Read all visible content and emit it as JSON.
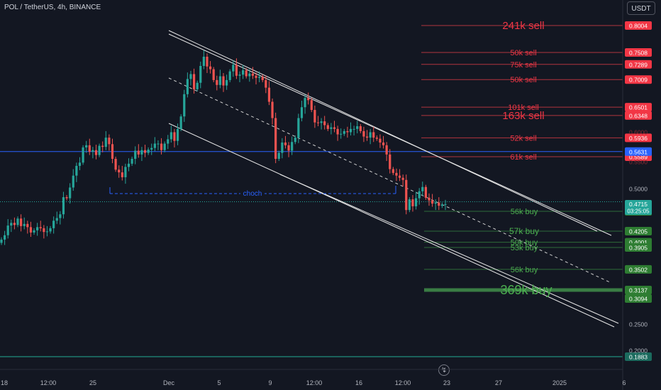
{
  "header": {
    "title": "POL / TetherUS, 4h, BINANCE",
    "currency_button": "USDT",
    "bolt_icon": "lightning-icon"
  },
  "colors": {
    "background": "#131722",
    "up": "#26a69a",
    "down": "#ef5350",
    "sell": "#f23645",
    "buy": "#4caf50",
    "price_line": "#2962ff"
  },
  "chart_data": {
    "type": "candlestick",
    "symbol": "POL / TetherUS",
    "interval": "4h",
    "exchange": "BINANCE",
    "ylim": [
      0.18,
      0.85
    ],
    "y_ticks": [
      "0.5000",
      "0.2500",
      "0.2000"
    ],
    "x_ticks": [
      "18",
      "12:00",
      "25",
      "Dec",
      "5",
      "9",
      "12:00",
      "16",
      "12:00",
      "23",
      "27",
      "2025",
      "6"
    ],
    "current_price": "0.4715",
    "countdown": "03:25:05",
    "blue_line_price": "0.5631",
    "sell_orders": [
      {
        "label": "241k sell",
        "price": "0.8004",
        "size": "large"
      },
      {
        "label": "50k sell",
        "price": "0.7508"
      },
      {
        "label": "75k sell",
        "price": "0.7289"
      },
      {
        "label": "50k sell",
        "price": "0.7009"
      },
      {
        "label": "101k sell",
        "price": "0.6501"
      },
      {
        "label": "163k sell",
        "price": "0.6348",
        "size": "large"
      },
      {
        "label": "52k sell",
        "price": "0.5936"
      },
      {
        "label": "61k sell",
        "price": "0.5589"
      }
    ],
    "buy_orders": [
      {
        "label": "56k buy",
        "price": "0.4576"
      },
      {
        "label": "57k buy",
        "price": "0.4205"
      },
      {
        "label": "50k buy",
        "price": "0.4001"
      },
      {
        "label": "53k buy",
        "price": "0.3905"
      },
      {
        "label": "56k buy",
        "price": "0.3502"
      },
      {
        "label": "369k buy",
        "price": "0.3137",
        "size": "xlarge"
      }
    ],
    "extra_price_labels": [
      "0.3094",
      "0.1883"
    ],
    "annotations": [
      "choch"
    ],
    "closes": [
      0.405,
      0.413,
      0.431,
      0.436,
      0.432,
      0.444,
      0.43,
      0.434,
      0.428,
      0.418,
      0.422,
      0.428,
      0.426,
      0.419,
      0.42,
      0.426,
      0.44,
      0.445,
      0.452,
      0.484,
      0.482,
      0.502,
      0.524,
      0.542,
      0.548,
      0.576,
      0.58,
      0.568,
      0.571,
      0.562,
      0.579,
      0.577,
      0.594,
      0.582,
      0.555,
      0.535,
      0.53,
      0.521,
      0.54,
      0.546,
      0.555,
      0.57,
      0.563,
      0.571,
      0.566,
      0.572,
      0.575,
      0.583,
      0.583,
      0.571,
      0.583,
      0.591,
      0.604,
      0.588,
      0.61,
      0.633,
      0.674,
      0.702,
      0.711,
      0.683,
      0.695,
      0.726,
      0.743,
      0.725,
      0.72,
      0.7,
      0.691,
      0.707,
      0.69,
      0.7,
      0.716,
      0.728,
      0.708,
      0.71,
      0.718,
      0.707,
      0.712,
      0.708,
      0.704,
      0.706,
      0.7,
      0.686,
      0.66,
      0.63,
      0.555,
      0.566,
      0.585,
      0.58,
      0.57,
      0.586,
      0.594,
      0.63,
      0.65,
      0.667,
      0.663,
      0.645,
      0.622,
      0.621,
      0.624,
      0.617,
      0.61,
      0.613,
      0.61,
      0.6,
      0.601,
      0.606,
      0.604,
      0.61,
      0.61,
      0.615,
      0.606,
      0.596,
      0.594,
      0.604,
      0.594,
      0.592,
      0.585,
      0.58,
      0.563,
      0.536,
      0.529,
      0.524,
      0.52,
      0.516,
      0.46,
      0.48,
      0.467,
      0.482,
      0.495,
      0.503,
      0.483,
      0.478,
      0.472,
      0.474,
      0.468,
      0.47,
      0.471
    ]
  }
}
